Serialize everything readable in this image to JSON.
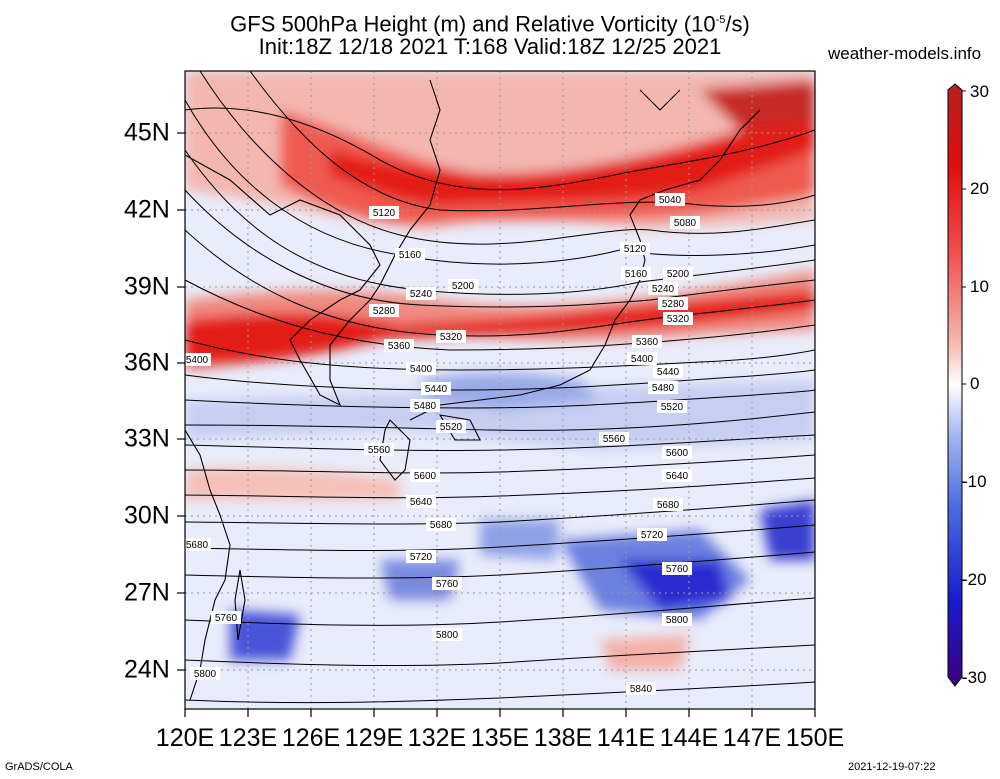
{
  "header": {
    "title_line1": "GFS 500hPa Height (m) and Relative Vorticity (10",
    "title_sup": "-5",
    "title_end": "/s)",
    "title_line2": "Init:18Z 12/18 2021 T:168 Valid:18Z 12/25 2021",
    "site": "weather-models.info"
  },
  "axes": {
    "lon_labels": [
      "120E",
      "123E",
      "126E",
      "129E",
      "132E",
      "135E",
      "138E",
      "141E",
      "144E",
      "147E",
      "150E"
    ],
    "lat_labels": [
      "24N",
      "27N",
      "30N",
      "33N",
      "36N",
      "39N",
      "42N",
      "45N"
    ]
  },
  "colorbar": {
    "labels": [
      "30",
      "20",
      "10",
      "0",
      "-10",
      "-20",
      "-30"
    ],
    "colors": [
      "#3d0080",
      "#1a1acc",
      "#4a6ee0",
      "#a8b8f0",
      "#ffffff",
      "#f4b0a8",
      "#ef5050",
      "#e01010",
      "#b82020"
    ]
  },
  "contours": {
    "labels": [
      "5040",
      "5080",
      "5120",
      "5120",
      "5160",
      "5160",
      "5200",
      "5200",
      "5240",
      "5240",
      "5280",
      "5280",
      "5320",
      "5320",
      "5360",
      "5360",
      "5400",
      "5400",
      "5400",
      "5440",
      "5440",
      "5480",
      "5480",
      "5520",
      "5520",
      "5560",
      "5560",
      "5600",
      "5600",
      "5640",
      "5640",
      "5680",
      "5680",
      "5680",
      "5720",
      "5720",
      "5760",
      "5760",
      "5760",
      "5800",
      "5800",
      "5800",
      "5840"
    ]
  },
  "footer": {
    "left": "GrADS/COLA",
    "right": "2021-12-19-07:22"
  }
}
